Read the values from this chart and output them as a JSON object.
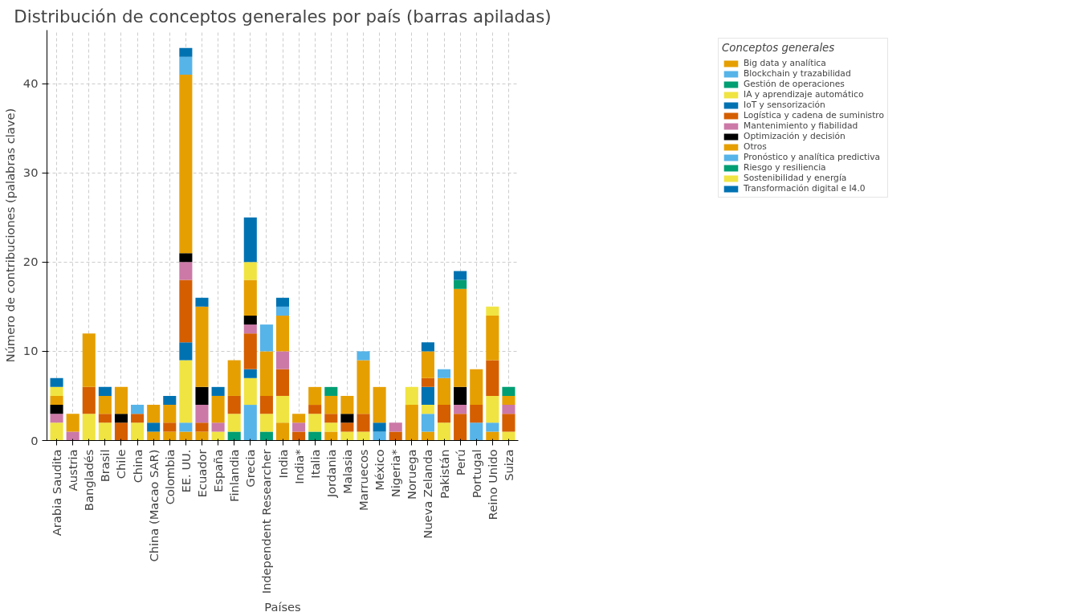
{
  "chart_data": {
    "type": "bar",
    "stacked": true,
    "title": "Distribución de conceptos generales por país (barras apiladas)",
    "xlabel": "Países",
    "ylabel": "Número de contribuciones (palabras clave)",
    "legend_title": "Conceptos generales",
    "legend": "top right",
    "grid": true,
    "categories": [
      "Arabia Saudita",
      "Austria",
      "Bangladés",
      "Brasil",
      "Chile",
      "China",
      "China (Macao SAR)",
      "Colombia",
      "EE. UU.",
      "Ecuador",
      "España",
      "Finlandia",
      "Grecia",
      "Independent Researcher",
      "India",
      "India*",
      "Italia",
      "Jordania",
      "Malasia",
      "Marruecos",
      "México",
      "Nigeria*",
      "Noruega",
      "Nueva Zelanda",
      "Pakistán",
      "Perú",
      "Portugal",
      "Reino Unido",
      "Suiza"
    ],
    "ylim": [
      0,
      46
    ],
    "yticks": [
      0,
      10,
      20,
      30,
      40
    ],
    "series": [
      {
        "name": "Big data y analítica",
        "color": "#e69f00",
        "values": [
          0,
          0,
          0,
          0,
          0,
          0,
          1,
          1,
          1,
          1,
          0,
          0,
          0,
          0,
          2,
          0,
          0,
          1,
          0,
          0,
          0,
          0,
          0,
          1,
          0,
          0,
          0,
          1,
          0
        ]
      },
      {
        "name": "Blockchain y trazabilidad",
        "color": "#56b4e9",
        "values": [
          0,
          0,
          0,
          0,
          0,
          0,
          0,
          0,
          1,
          0,
          0,
          0,
          4,
          0,
          0,
          0,
          0,
          0,
          0,
          0,
          1,
          0,
          0,
          2,
          0,
          0,
          2,
          1,
          0
        ]
      },
      {
        "name": "Gestión de operaciones",
        "color": "#009e73",
        "values": [
          0,
          0,
          0,
          0,
          0,
          0,
          0,
          0,
          0,
          0,
          0,
          1,
          0,
          1,
          0,
          0,
          1,
          0,
          0,
          0,
          0,
          0,
          0,
          0,
          0,
          0,
          0,
          0,
          0
        ]
      },
      {
        "name": "IA y aprendizaje automático",
        "color": "#f0e442",
        "values": [
          2,
          0,
          3,
          2,
          0,
          2,
          0,
          0,
          7,
          0,
          1,
          2,
          3,
          2,
          3,
          0,
          2,
          1,
          1,
          1,
          0,
          0,
          0,
          1,
          2,
          0,
          0,
          3,
          1
        ]
      },
      {
        "name": "IoT y sensorización",
        "color": "#0072b2",
        "values": [
          0,
          0,
          0,
          0,
          0,
          0,
          1,
          0,
          2,
          0,
          0,
          0,
          1,
          0,
          0,
          0,
          0,
          0,
          0,
          0,
          1,
          0,
          0,
          2,
          0,
          0,
          0,
          0,
          0
        ]
      },
      {
        "name": "Logística y cadena de suministro",
        "color": "#d55e00",
        "values": [
          0,
          0,
          3,
          1,
          2,
          1,
          0,
          1,
          7,
          1,
          0,
          2,
          4,
          2,
          3,
          1,
          1,
          1,
          1,
          2,
          0,
          1,
          0,
          1,
          2,
          3,
          2,
          4,
          2
        ]
      },
      {
        "name": "Mantenimiento y fiabilidad",
        "color": "#cc79a7",
        "values": [
          1,
          1,
          0,
          0,
          0,
          0,
          0,
          0,
          2,
          2,
          1,
          0,
          1,
          0,
          2,
          1,
          0,
          0,
          0,
          0,
          0,
          1,
          0,
          0,
          0,
          1,
          0,
          0,
          1
        ]
      },
      {
        "name": "Optimización y decisión",
        "color": "#000000",
        "values": [
          1,
          0,
          0,
          0,
          1,
          0,
          0,
          0,
          1,
          2,
          0,
          0,
          1,
          0,
          0,
          0,
          0,
          0,
          1,
          0,
          0,
          0,
          0,
          0,
          0,
          2,
          0,
          0,
          0
        ]
      },
      {
        "name": "Otros",
        "color": "#e69f00",
        "values": [
          1,
          2,
          6,
          2,
          3,
          0,
          2,
          2,
          20,
          9,
          3,
          4,
          4,
          5,
          4,
          1,
          2,
          2,
          2,
          6,
          4,
          0,
          4,
          3,
          3,
          11,
          4,
          5,
          1
        ]
      },
      {
        "name": "Pronóstico y analítica predictiva",
        "color": "#56b4e9",
        "values": [
          0,
          0,
          0,
          0,
          0,
          1,
          0,
          0,
          2,
          0,
          0,
          0,
          0,
          3,
          1,
          0,
          0,
          0,
          0,
          1,
          0,
          0,
          0,
          0,
          1,
          0,
          0,
          0,
          0
        ]
      },
      {
        "name": "Riesgo y resiliencia",
        "color": "#009e73",
        "values": [
          0,
          0,
          0,
          0,
          0,
          0,
          0,
          0,
          0,
          0,
          0,
          0,
          0,
          0,
          0,
          0,
          0,
          1,
          0,
          0,
          0,
          0,
          0,
          0,
          0,
          1,
          0,
          0,
          1
        ]
      },
      {
        "name": "Sostenibilidad y energía",
        "color": "#f0e442",
        "values": [
          1,
          0,
          0,
          0,
          0,
          0,
          0,
          0,
          0,
          0,
          0,
          0,
          2,
          0,
          0,
          0,
          0,
          0,
          0,
          0,
          0,
          0,
          2,
          0,
          0,
          0,
          0,
          1,
          0
        ]
      },
      {
        "name": "Transformación digital e I4.0",
        "color": "#0072b2",
        "values": [
          1,
          0,
          0,
          1,
          0,
          0,
          0,
          1,
          1,
          1,
          1,
          0,
          5,
          0,
          1,
          0,
          0,
          0,
          0,
          0,
          0,
          0,
          0,
          1,
          0,
          1,
          0,
          0,
          0
        ]
      }
    ]
  }
}
